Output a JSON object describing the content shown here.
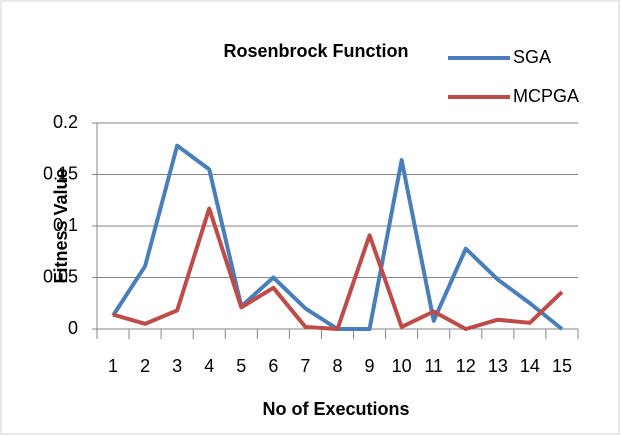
{
  "chart_data": {
    "type": "line",
    "title": "Rosenbrock Function",
    "x_label": "No of Executions",
    "y_label": "Fitness Value",
    "categories": [
      "1",
      "2",
      "3",
      "4",
      "5",
      "6",
      "7",
      "8",
      "9",
      "10",
      "11",
      "12",
      "13",
      "14",
      "15"
    ],
    "series": [
      {
        "name": "SGA",
        "color": "#4a7ebb",
        "values": [
          0.013,
          0.061,
          0.178,
          0.155,
          0.022,
          0.05,
          0.02,
          0,
          0,
          0.164,
          0.008,
          0.078,
          0.048,
          0.025,
          0
        ]
      },
      {
        "name": "MCPGA",
        "color": "#be4b48",
        "values": [
          0.014,
          0.005,
          0.018,
          0.117,
          0.021,
          0.04,
          0.002,
          0,
          0.091,
          0.002,
          0.017,
          0,
          0.009,
          0.006,
          0.036
        ]
      }
    ],
    "ylim": [
      0,
      0.2
    ],
    "yticks": [
      0,
      0.05,
      0.1,
      0.15,
      0.2
    ],
    "grid": true,
    "legend": "top-right"
  }
}
